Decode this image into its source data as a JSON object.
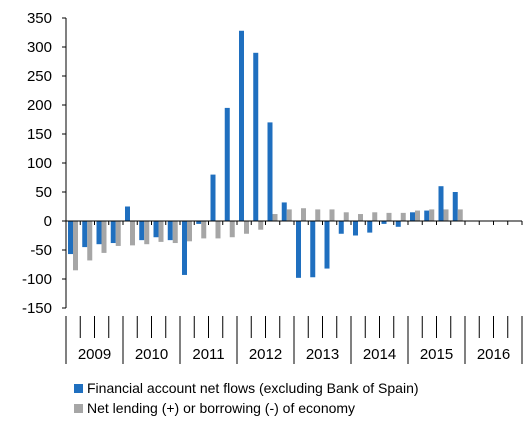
{
  "chart_data": {
    "type": "bar",
    "title": "",
    "xlabel": "",
    "ylabel": "",
    "ylim": [
      -150,
      350
    ],
    "yticks": [
      350,
      300,
      250,
      200,
      150,
      100,
      50,
      0,
      -50,
      -100,
      -150
    ],
    "ytick_labels": [
      "350",
      "300",
      "250",
      "200",
      "150",
      "100",
      "50",
      "0",
      "-50",
      "-100",
      "-150"
    ],
    "years": [
      "2009",
      "2010",
      "2011",
      "2012",
      "2013",
      "2014",
      "2015",
      "2016"
    ],
    "quarters_per_year": 4,
    "grid": false,
    "legend_position": "bottom",
    "series": [
      {
        "name": "Financial account net flows (excluding Bank of Spain)",
        "color": "#1f6fbf",
        "values": [
          -57,
          -45,
          -40,
          -38,
          25,
          -33,
          -28,
          -33,
          -93,
          -5,
          80,
          195,
          328,
          290,
          170,
          32,
          -98,
          -97,
          -82,
          -22,
          -25,
          -20,
          -5,
          -10,
          15,
          18,
          60,
          50,
          null,
          null,
          null,
          null
        ]
      },
      {
        "name": "Net lending (+) or borrowing (-) of economy",
        "color": "#a6a6a6",
        "values": [
          -85,
          -68,
          -55,
          -43,
          -42,
          -40,
          -36,
          -38,
          -35,
          -30,
          -30,
          -28,
          -22,
          -15,
          12,
          20,
          22,
          20,
          20,
          15,
          12,
          15,
          14,
          14,
          18,
          20,
          20,
          20,
          null,
          null,
          null,
          null
        ]
      }
    ]
  },
  "legend": {
    "items": [
      {
        "label": "Financial account net flows (excluding Bank of Spain)",
        "color": "#1f6fbf"
      },
      {
        "label": "Net lending (+) or borrowing (-) of economy",
        "color": "#a6a6a6"
      }
    ]
  }
}
